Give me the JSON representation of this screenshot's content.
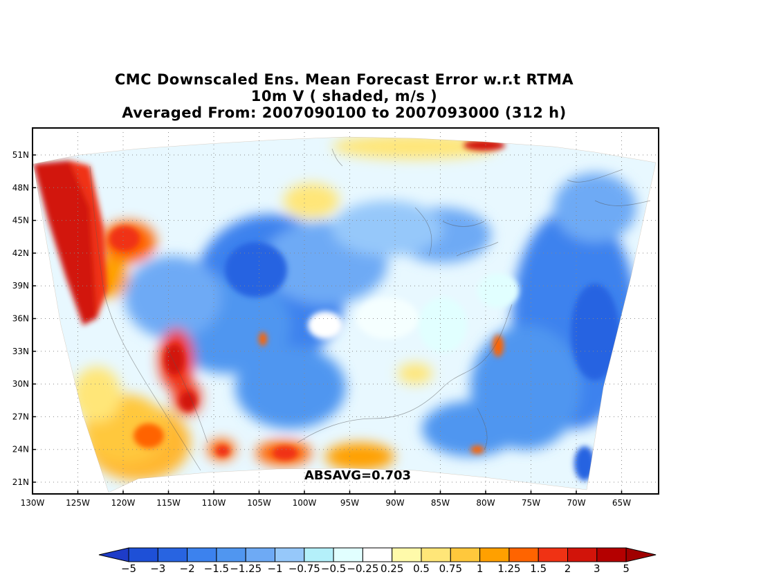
{
  "title": {
    "line1": "CMC Downscaled Ens. Mean Forecast Error w.r.t RTMA",
    "line2": "10m V ( shaded, m/s )",
    "line3": "Averaged From: 2007090100 to 2007093000 (312 h)"
  },
  "map": {
    "lat_labels": [
      "51N",
      "48N",
      "45N",
      "42N",
      "39N",
      "36N",
      "33N",
      "30N",
      "27N",
      "24N",
      "21N"
    ],
    "lon_labels": [
      "130W",
      "125W",
      "120W",
      "115W",
      "110W",
      "105W",
      "100W",
      "95W",
      "90W",
      "85W",
      "80W",
      "75W",
      "70W",
      "65W"
    ],
    "absavg": "ABSAVG=0.703",
    "domain_colors": {
      "west_coast": "#c8190f",
      "southwest": "#ffb732",
      "plains": "#3c8cf0",
      "east": "#64aaf5",
      "background": "#ffffff"
    }
  },
  "colorbar": {
    "labels": [
      "−5",
      "−3",
      "−2",
      "−1.5",
      "−1.25",
      "−1",
      "−0.75",
      "−0.5",
      "−0.25",
      "0.25",
      "0.5",
      "0.75",
      "1",
      "1.25",
      "1.5",
      "2",
      "3",
      "5"
    ],
    "colors": [
      "#1e50d7",
      "#2864e1",
      "#3c82ee",
      "#5096f0",
      "#6eaaf5",
      "#96c8fa",
      "#b4f0fa",
      "#e1ffff",
      "#ffffff",
      "#fffaaa",
      "#ffe678",
      "#ffc83c",
      "#ffa000",
      "#ff6400",
      "#f03214",
      "#d2140a",
      "#b40000"
    ],
    "low_arrow_color": "#1e3cc8",
    "high_arrow_color": "#a00000"
  }
}
